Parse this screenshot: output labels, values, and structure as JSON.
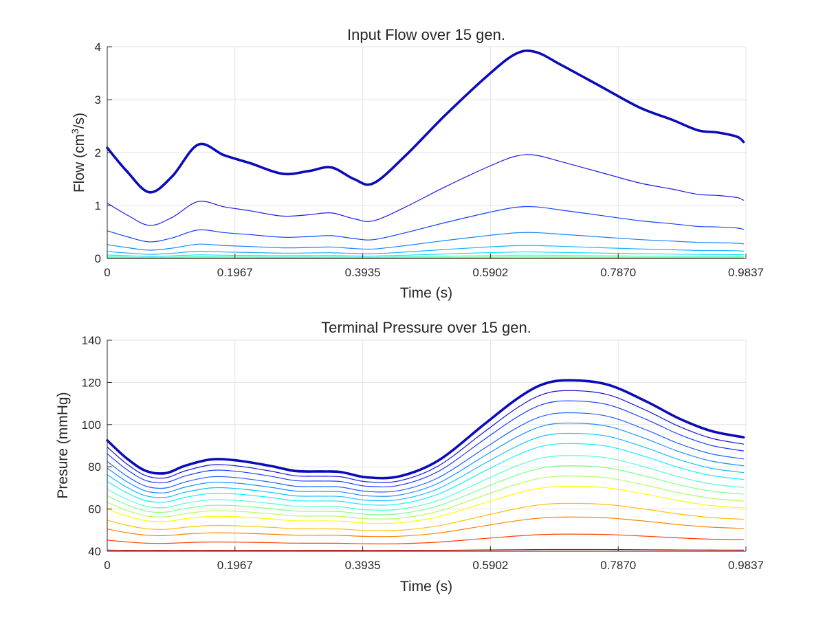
{
  "chart_data": [
    {
      "type": "line",
      "title": "Input Flow over 15 gen.",
      "xlabel": "Time (s)",
      "ylabel_main": "Flow (cm",
      "ylabel_sup": "3",
      "ylabel_tail": "/s)",
      "xlim": [
        0,
        0.9837
      ],
      "ylim": [
        0,
        4
      ],
      "grid": true,
      "xticks": [
        0,
        0.1967,
        0.3935,
        0.5902,
        0.787,
        0.9837
      ],
      "xtick_labels": [
        "0",
        "0.1967",
        "0.3935",
        "0.5902",
        "0.7870",
        "0.9837"
      ],
      "yticks": [
        0,
        1,
        2,
        3,
        4
      ],
      "ytick_labels": [
        "0",
        "1",
        "2",
        "3",
        "4"
      ],
      "x": [
        0,
        0.03,
        0.065,
        0.1,
        0.14,
        0.18,
        0.22,
        0.27,
        0.31,
        0.345,
        0.38,
        0.41,
        0.46,
        0.52,
        0.59,
        0.63,
        0.66,
        0.7,
        0.76,
        0.82,
        0.87,
        0.91,
        0.94,
        0.97,
        0.98
      ],
      "base_values": [
        2.09,
        1.65,
        1.25,
        1.55,
        2.15,
        1.95,
        1.8,
        1.6,
        1.65,
        1.72,
        1.5,
        1.42,
        1.95,
        2.7,
        3.5,
        3.87,
        3.9,
        3.65,
        3.25,
        2.85,
        2.62,
        2.42,
        2.38,
        2.3,
        2.2
      ],
      "series_scale": [
        1,
        0.5,
        0.25,
        0.125,
        0.0625,
        0.03125,
        0.015625,
        0.0078125,
        0.00390625,
        0.001953125,
        0.0009765625,
        0.00048828125,
        0.000244140625,
        0.0001220703125,
        6.103515625e-05
      ],
      "series_colors": [
        "#0b0bb8",
        "#1a1af0",
        "#1040ff",
        "#1a80ff",
        "#1ab0ff",
        "#10e0ff",
        "#40ffd0",
        "#70ffa0",
        "#a0ff70",
        "#d0ff40",
        "#ffff00",
        "#ffc000",
        "#ff8000",
        "#ff4000",
        "#e00000"
      ],
      "series_widths": [
        3.6,
        1.2,
        1.2,
        1.2,
        1.2,
        1.2,
        1.2,
        1.2,
        1.2,
        1.2,
        1.2,
        1.2,
        1.2,
        1.2,
        1.2
      ]
    },
    {
      "type": "line",
      "title": "Terminal Pressure over 15 gen.",
      "xlabel": "Time (s)",
      "ylabel": "Presure (mmHg)",
      "xlim": [
        0,
        0.9837
      ],
      "ylim": [
        40,
        140
      ],
      "grid": true,
      "xticks": [
        0,
        0.1967,
        0.3935,
        0.5902,
        0.787,
        0.9837
      ],
      "xtick_labels": [
        "0",
        "0.1967",
        "0.3935",
        "0.5902",
        "0.7870",
        "0.9837"
      ],
      "yticks": [
        40,
        60,
        80,
        100,
        120,
        140
      ],
      "ytick_labels": [
        "40",
        "60",
        "80",
        "100",
        "120",
        "140"
      ],
      "x": [
        0,
        0.03,
        0.06,
        0.09,
        0.12,
        0.16,
        0.2,
        0.25,
        0.29,
        0.33,
        0.36,
        0.4,
        0.45,
        0.51,
        0.58,
        0.63,
        0.67,
        0.71,
        0.77,
        0.83,
        0.88,
        0.93,
        0.98
      ],
      "base_values": [
        92.5,
        84,
        78,
        77,
        80.5,
        83.5,
        83,
        80.5,
        78,
        77.8,
        77.5,
        75,
        75.5,
        83,
        100,
        112,
        119,
        121,
        119,
        111,
        103,
        97,
        94
      ],
      "baseline": 40,
      "series_factor": [
        1,
        0.94,
        0.88,
        0.81,
        0.75,
        0.69,
        0.63,
        0.56,
        0.5,
        0.44,
        0.38,
        0.28,
        0.2,
        0.1,
        0.01
      ],
      "series_colors": [
        "#0b0bb8",
        "#1414d8",
        "#1a3aff",
        "#1a60ff",
        "#1a90ff",
        "#10c0ff",
        "#10f0ff",
        "#50ffd0",
        "#80ff90",
        "#b0ff60",
        "#ffff00",
        "#ffc000",
        "#ff8000",
        "#ff4000",
        "#e00000"
      ],
      "series_widths": [
        3.6,
        1.2,
        1.2,
        1.2,
        1.2,
        1.2,
        1.2,
        1.2,
        1.2,
        1.2,
        1.2,
        1.2,
        1.2,
        1.2,
        1.2
      ]
    }
  ]
}
